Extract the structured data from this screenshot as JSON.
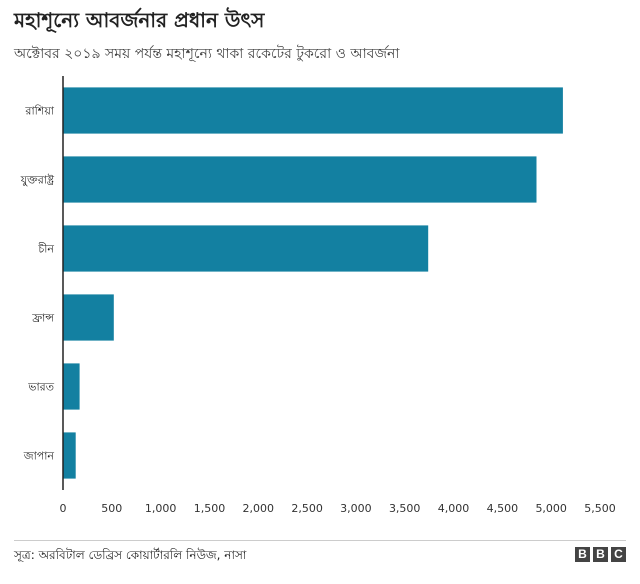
{
  "logo": {
    "letters": [
      "B",
      "B",
      "C"
    ]
  },
  "chart_data": {
    "type": "bar",
    "orientation": "horizontal",
    "title": "মহাশূন্যে আবর্জনার প্রধান উৎস",
    "subtitle": "অক্টোবর ২০১৯ সময় পর্যন্ত মহাশূন্যে থাকা রকেটের টুকরো ও আবর্জনা",
    "source": "সূত্র: অরবিটাল ডেব্রিস কোয়ার্টারলি নিউজ, নাসা",
    "categories": [
      "রাশিয়া",
      "যুক্তরাষ্ট্র",
      "চীন",
      "ফ্রান্স",
      "ভারত",
      "জাপান"
    ],
    "values": [
      5120,
      4850,
      3740,
      520,
      170,
      130
    ],
    "xlim": [
      0,
      5500
    ],
    "xticks": [
      0,
      500,
      1000,
      1500,
      2000,
      2500,
      3000,
      3500,
      4000,
      4500,
      5000,
      5500
    ],
    "xtick_labels": [
      "0",
      "500",
      "1,000",
      "1,500",
      "2,000",
      "2,500",
      "3,000",
      "3,500",
      "4,000",
      "4,500",
      "5,000",
      "5,500"
    ],
    "bar_color": "#1380a1",
    "grid": false,
    "legend": "none"
  }
}
